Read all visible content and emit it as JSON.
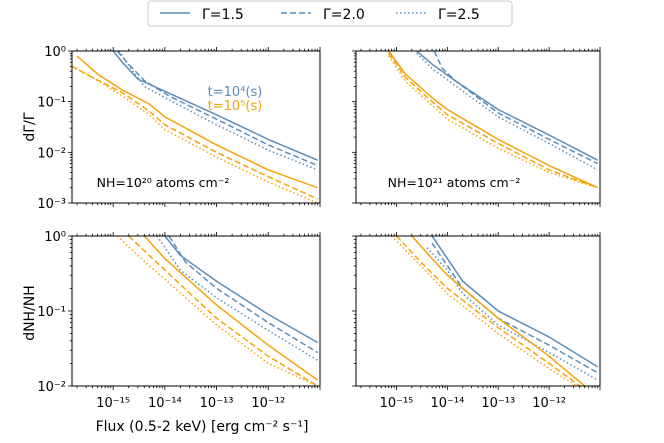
{
  "legend": {
    "placement": "top-center",
    "entries": [
      {
        "label": "Γ=1.5",
        "dash": "solid"
      },
      {
        "label": "Γ=2.0",
        "dash": "dashed"
      },
      {
        "label": "Γ=2.5",
        "dash": "dotted"
      }
    ]
  },
  "colors": {
    "t1e4": "#5b8db8",
    "t1e5": "#f5a30a"
  },
  "time_legend": {
    "t1": "t=10⁴(s)",
    "t2": "t=10⁵(s)"
  },
  "labels": {
    "ylabel_top": "dΓ/Γ",
    "ylabel_bottom": "dNH/NH",
    "xlabel": "Flux (0.5-2 keV) [erg cm⁻² s⁻¹]",
    "nh_left": "NH=10²⁰ atoms cm⁻²",
    "nh_right": "NH=10²¹ atoms cm⁻²"
  },
  "chart_data": [
    {
      "type": "line",
      "panel": "top-left",
      "ylabel": "dΓ/Γ",
      "xlabel": "",
      "xscale": "log",
      "yscale": "log",
      "xlim": [
        1.6e-16,
        1e-11
      ],
      "ylim": [
        0.001,
        1
      ],
      "yticks": [
        "10⁰",
        "10⁻¹",
        "10⁻²",
        "10⁻³"
      ],
      "xticks": [],
      "annotation": "NH=10²⁰ atoms cm⁻²",
      "series": [
        {
          "name": "Γ=1.5",
          "time": "t=10⁴(s)",
          "x": [
            1e-15,
            1.5e-15,
            3e-15,
            1e-14,
            1e-13,
            1e-12,
            9e-12
          ],
          "y": [
            1.0,
            0.6,
            0.28,
            0.16,
            0.055,
            0.018,
            0.007
          ]
        },
        {
          "name": "Γ=2.0",
          "time": "t=10⁴(s)",
          "x": [
            1.2e-15,
            2e-15,
            4e-15,
            1.2e-14,
            1e-13,
            1e-12,
            9e-12
          ],
          "y": [
            1.0,
            0.55,
            0.26,
            0.13,
            0.045,
            0.014,
            0.0055
          ]
        },
        {
          "name": "Γ=2.5",
          "time": "t=10⁴(s)",
          "x": [
            1.3e-15,
            2.2e-15,
            4e-15,
            1.4e-14,
            1e-13,
            1e-12,
            9e-12
          ],
          "y": [
            1.0,
            0.45,
            0.2,
            0.1,
            0.035,
            0.011,
            0.0045
          ]
        },
        {
          "name": "Γ=1.5",
          "time": "t=10⁵(s)",
          "x": [
            2e-16,
            5e-16,
            1.5e-15,
            5e-15,
            1e-14,
            1e-13,
            1e-12,
            9e-12
          ],
          "y": [
            0.8,
            0.35,
            0.17,
            0.09,
            0.05,
            0.014,
            0.0045,
            0.002
          ]
        },
        {
          "name": "Γ=2.0",
          "time": "t=10⁵(s)",
          "x": [
            1.6e-16,
            4e-16,
            1.5e-15,
            5e-15,
            1e-14,
            1e-13,
            1e-12,
            9e-12
          ],
          "y": [
            0.5,
            0.3,
            0.15,
            0.065,
            0.035,
            0.01,
            0.0033,
            0.0012
          ]
        },
        {
          "name": "Γ=2.5",
          "time": "t=10⁵(s)",
          "x": [
            1.6e-16,
            4e-16,
            1.5e-15,
            5e-15,
            1e-14,
            1e-13,
            1e-12,
            9e-12
          ],
          "y": [
            0.5,
            0.3,
            0.13,
            0.055,
            0.028,
            0.008,
            0.0026,
            0.001
          ]
        }
      ]
    },
    {
      "type": "line",
      "panel": "top-right",
      "ylabel": "",
      "xlabel": "",
      "xscale": "log",
      "yscale": "log",
      "xlim": [
        1.6e-16,
        1e-11
      ],
      "ylim": [
        0.001,
        1
      ],
      "yticks": [],
      "xticks": [],
      "annotation": "NH=10²¹ atoms cm⁻²",
      "series": [
        {
          "name": "Γ=1.5",
          "time": "t=10⁴(s)",
          "x": [
            2.5e-15,
            5e-15,
            1.5e-14,
            1e-13,
            1e-12,
            9e-12
          ],
          "y": [
            1.0,
            0.55,
            0.25,
            0.07,
            0.022,
            0.007
          ]
        },
        {
          "name": "Γ=2.0",
          "time": "t=10⁴(s)",
          "x": [
            5.5e-15,
            8e-15,
            1.5e-14,
            1e-13,
            1e-12,
            9e-12
          ],
          "y": [
            1.0,
            0.45,
            0.25,
            0.06,
            0.018,
            0.006
          ]
        },
        {
          "name": "Γ=2.5",
          "time": "t=10⁴(s)",
          "x": [
            2.5e-15,
            5e-15,
            1.5e-14,
            1e-13,
            1e-12,
            9e-12
          ],
          "y": [
            0.9,
            0.45,
            0.2,
            0.05,
            0.015,
            0.0045
          ]
        },
        {
          "name": "Γ=1.5",
          "time": "t=10⁵(s)",
          "x": [
            7e-16,
            1.5e-15,
            5e-15,
            1e-14,
            1e-13,
            1e-12,
            9e-12
          ],
          "y": [
            1.0,
            0.35,
            0.12,
            0.07,
            0.018,
            0.0055,
            0.002
          ]
        },
        {
          "name": "Γ=2.0",
          "time": "t=10⁵(s)",
          "x": [
            7e-16,
            1.5e-15,
            5e-15,
            1e-14,
            1e-13,
            1e-12,
            9e-12
          ],
          "y": [
            0.9,
            0.3,
            0.1,
            0.055,
            0.015,
            0.0045,
            0.002
          ]
        },
        {
          "name": "Γ=2.5",
          "time": "t=10⁵(s)",
          "x": [
            7e-16,
            1.5e-15,
            5e-15,
            1e-14,
            1e-13,
            1e-12,
            9e-12
          ],
          "y": [
            0.8,
            0.25,
            0.085,
            0.045,
            0.012,
            0.004,
            0.002
          ]
        }
      ]
    },
    {
      "type": "line",
      "panel": "bottom-left",
      "ylabel": "dNH/NH",
      "xlabel": "Flux (0.5-2 keV) [erg cm⁻² s⁻¹]",
      "xscale": "log",
      "yscale": "log",
      "xlim": [
        1.6e-16,
        1e-11
      ],
      "ylim": [
        0.01,
        1
      ],
      "yticks": [
        "10⁰",
        "10⁻¹",
        "10⁻²"
      ],
      "xticks": [
        "10⁻¹⁵",
        "10⁻¹⁴",
        "10⁻¹³",
        "10⁻¹²"
      ],
      "series": [
        {
          "name": "Γ=1.5",
          "time": "t=10⁴(s)",
          "x": [
            1e-14,
            2e-14,
            1e-13,
            1e-12,
            9e-12
          ],
          "y": [
            1.0,
            0.55,
            0.25,
            0.09,
            0.038
          ]
        },
        {
          "name": "Γ=2.0",
          "time": "t=10⁴(s)",
          "x": [
            1.2e-14,
            2.5e-14,
            1e-13,
            1e-12,
            9e-12
          ],
          "y": [
            1.0,
            0.45,
            0.2,
            0.07,
            0.028
          ]
        },
        {
          "name": "Γ=2.5",
          "time": "t=10⁴(s)",
          "x": [
            7e-15,
            2e-14,
            1e-13,
            1e-12,
            9e-12
          ],
          "y": [
            1.0,
            0.35,
            0.15,
            0.055,
            0.022
          ]
        },
        {
          "name": "Γ=1.5",
          "time": "t=10⁵(s)",
          "x": [
            4e-15,
            1e-14,
            1e-13,
            1e-12,
            9e-12
          ],
          "y": [
            1.0,
            0.5,
            0.12,
            0.035,
            0.012
          ]
        },
        {
          "name": "Γ=2.0",
          "time": "t=10⁵(s)",
          "x": [
            2e-15,
            5e-15,
            1e-13,
            1e-12,
            9e-12
          ],
          "y": [
            1.0,
            0.55,
            0.08,
            0.025,
            0.01
          ]
        },
        {
          "name": "Γ=2.5",
          "time": "t=10⁵(s)",
          "x": [
            1.2e-15,
            3e-15,
            1e-13,
            1e-12,
            9e-12
          ],
          "y": [
            1.0,
            0.55,
            0.065,
            0.02,
            0.01
          ]
        }
      ]
    },
    {
      "type": "line",
      "panel": "bottom-right",
      "ylabel": "",
      "xlabel": "",
      "xscale": "log",
      "yscale": "log",
      "xlim": [
        1.6e-16,
        1e-11
      ],
      "ylim": [
        0.01,
        1
      ],
      "yticks": [],
      "xticks": [
        "10⁻¹⁵",
        "10⁻¹⁴",
        "10⁻¹³",
        "10⁻¹²"
      ],
      "series": [
        {
          "name": "Γ=1.5",
          "time": "t=10⁴(s)",
          "x": [
            5e-15,
            1e-14,
            2e-14,
            1e-13,
            1e-12,
            9e-12
          ],
          "y": [
            1.0,
            0.5,
            0.25,
            0.1,
            0.045,
            0.018
          ]
        },
        {
          "name": "Γ=2.0",
          "time": "t=10⁴(s)",
          "x": [
            5e-15,
            1e-14,
            2e-14,
            1e-13,
            1e-12,
            9e-12
          ],
          "y": [
            0.8,
            0.4,
            0.2,
            0.08,
            0.035,
            0.015
          ]
        },
        {
          "name": "Γ=2.5",
          "time": "t=10⁴(s)",
          "x": [
            4e-15,
            1e-14,
            2e-14,
            1e-13,
            1e-12,
            9e-12
          ],
          "y": [
            0.7,
            0.35,
            0.17,
            0.065,
            0.028,
            0.012
          ]
        },
        {
          "name": "Γ=1.5",
          "time": "t=10⁵(s)",
          "x": [
            2e-15,
            5e-15,
            1e-14,
            1e-13,
            1e-12,
            5e-12
          ],
          "y": [
            1.0,
            0.5,
            0.3,
            0.08,
            0.025,
            0.01
          ]
        },
        {
          "name": "Γ=2.0",
          "time": "t=10⁵(s)",
          "x": [
            1e-15,
            3e-15,
            1e-14,
            1e-13,
            1e-12,
            4e-12
          ],
          "y": [
            1.0,
            0.45,
            0.2,
            0.06,
            0.02,
            0.01
          ]
        },
        {
          "name": "Γ=2.5",
          "time": "t=10⁵(s)",
          "x": [
            8e-16,
            3e-15,
            1e-14,
            1e-13,
            1e-12,
            3.5e-12
          ],
          "y": [
            1.0,
            0.4,
            0.17,
            0.05,
            0.017,
            0.01
          ]
        }
      ]
    }
  ]
}
